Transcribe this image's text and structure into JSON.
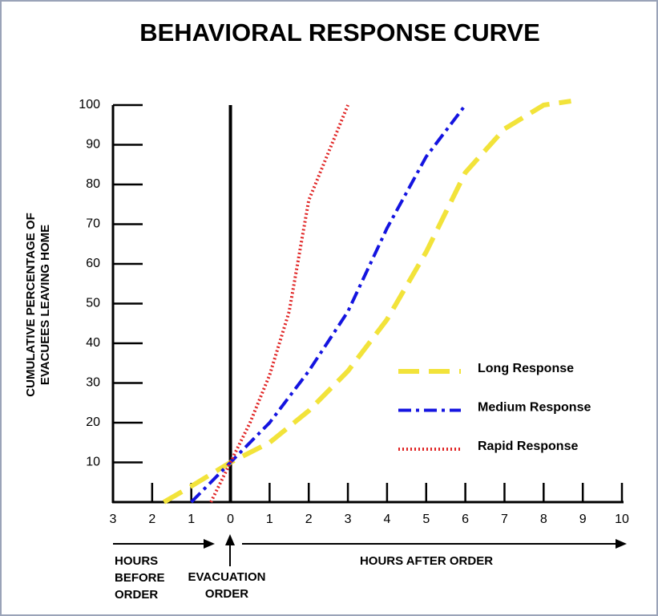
{
  "chart_data": {
    "type": "line",
    "title": "BEHAVIORAL RESPONSE CURVE",
    "ylabel": [
      "CUMULATIVE PERCENTAGE OF",
      "EVACUEES LEAVING HOME"
    ],
    "annotations": {
      "before": [
        "HOURS",
        "BEFORE",
        "ORDER"
      ],
      "order": [
        "EVACUATION",
        "ORDER"
      ],
      "after": [
        "HOURS AFTER ORDER"
      ]
    },
    "xlim": [
      -3,
      10
    ],
    "ylim": [
      0,
      100
    ],
    "xticks": [
      {
        "value": -3,
        "label": "3"
      },
      {
        "value": -2,
        "label": "2"
      },
      {
        "value": -1,
        "label": "1"
      },
      0,
      1,
      2,
      3,
      4,
      5,
      6,
      7,
      8,
      9,
      10
    ],
    "yticks": [
      10,
      20,
      30,
      40,
      50,
      60,
      70,
      80,
      90,
      100
    ],
    "legend": "right",
    "series": [
      {
        "name": "Long Response",
        "color": "#f2e33a",
        "style": "dashed",
        "x": [
          -1.7,
          -1,
          0,
          1,
          2,
          3,
          4,
          5,
          6,
          7,
          8,
          8.7
        ],
        "values": [
          0,
          4,
          10,
          15,
          23,
          33,
          46,
          63,
          83,
          94,
          100,
          101
        ]
      },
      {
        "name": "Medium Response",
        "color": "#1414e0",
        "style": "dashdot",
        "x": [
          -1,
          0,
          1,
          2,
          3,
          4,
          5,
          6
        ],
        "values": [
          0,
          10,
          20,
          33,
          48,
          69,
          87,
          100
        ]
      },
      {
        "name": "Rapid Response",
        "color": "#e02424",
        "style": "dotted",
        "x": [
          -0.5,
          0,
          0.5,
          1,
          1.5,
          2,
          2.5,
          3
        ],
        "values": [
          0,
          10,
          20,
          32,
          48,
          76,
          88,
          100
        ]
      }
    ]
  }
}
